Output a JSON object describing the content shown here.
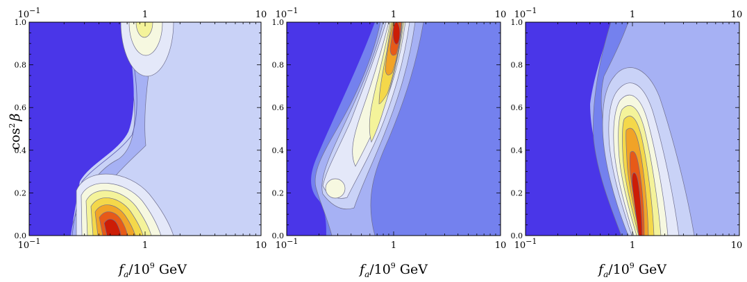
{
  "chart_data": [
    {
      "type": "heatmap",
      "panel": "left",
      "xscale": "log",
      "xlim": [
        0.1,
        10
      ],
      "ylim": [
        0,
        1
      ],
      "x_ticks": [
        "10",
        "1",
        "10"
      ],
      "y_ticks": [
        "0.0",
        "0.2",
        "0.4",
        "0.6",
        "0.8",
        "1.0"
      ],
      "xlabel": "fa/10^9 GeV",
      "ylabel": "cos^2 β",
      "peaks": [
        {
          "x": 0.38,
          "y": 0.04,
          "level": "max"
        },
        {
          "x": 0.75,
          "y": 1.0,
          "level": "medium"
        }
      ]
    },
    {
      "type": "heatmap",
      "panel": "middle",
      "xscale": "log",
      "xlim": [
        0.1,
        10
      ],
      "ylim": [
        0,
        1
      ],
      "x_ticks": [
        "10",
        "1",
        "10"
      ],
      "y_ticks": [
        "0.0",
        "0.2",
        "0.4",
        "0.6",
        "0.8",
        "1.0"
      ],
      "xlabel": "fa/10^9 GeV",
      "peaks": [
        {
          "x": 1.0,
          "y": 0.95,
          "level": "max"
        },
        {
          "x": 0.28,
          "y": 0.22,
          "level": "low"
        }
      ]
    },
    {
      "type": "heatmap",
      "panel": "right",
      "xscale": "log",
      "xlim": [
        0.1,
        10
      ],
      "ylim": [
        0,
        1
      ],
      "x_ticks": [
        "10",
        "1",
        "10"
      ],
      "y_ticks": [
        "0.0",
        "0.2",
        "0.4",
        "0.6",
        "0.8",
        "1.0"
      ],
      "xlabel": "fa/10^9 GeV",
      "peaks": [
        {
          "x": 0.9,
          "y": 0.15,
          "level": "max"
        }
      ]
    }
  ],
  "labels": {
    "xlabel_f": "f",
    "xlabel_sub": "a",
    "xlabel_div": "/10",
    "xlabel_exp": "9",
    "xlabel_unit": " GeV",
    "ylabel_cos": "cos",
    "ylabel_exp": "2",
    "ylabel_beta": "β",
    "tick_ten": "10",
    "tick_exp": "−1",
    "tick_one": "1",
    "tick_ten_end": "10"
  },
  "colors": {
    "background": "#4a36e8",
    "levels": [
      "#4a36e8",
      "#7481ee",
      "#a6b1f4",
      "#c9d2f7",
      "#e4e8f9",
      "#f6f8e0",
      "#f4f39a",
      "#f4d84a",
      "#f1a327",
      "#e75a18",
      "#cc1d06"
    ]
  }
}
